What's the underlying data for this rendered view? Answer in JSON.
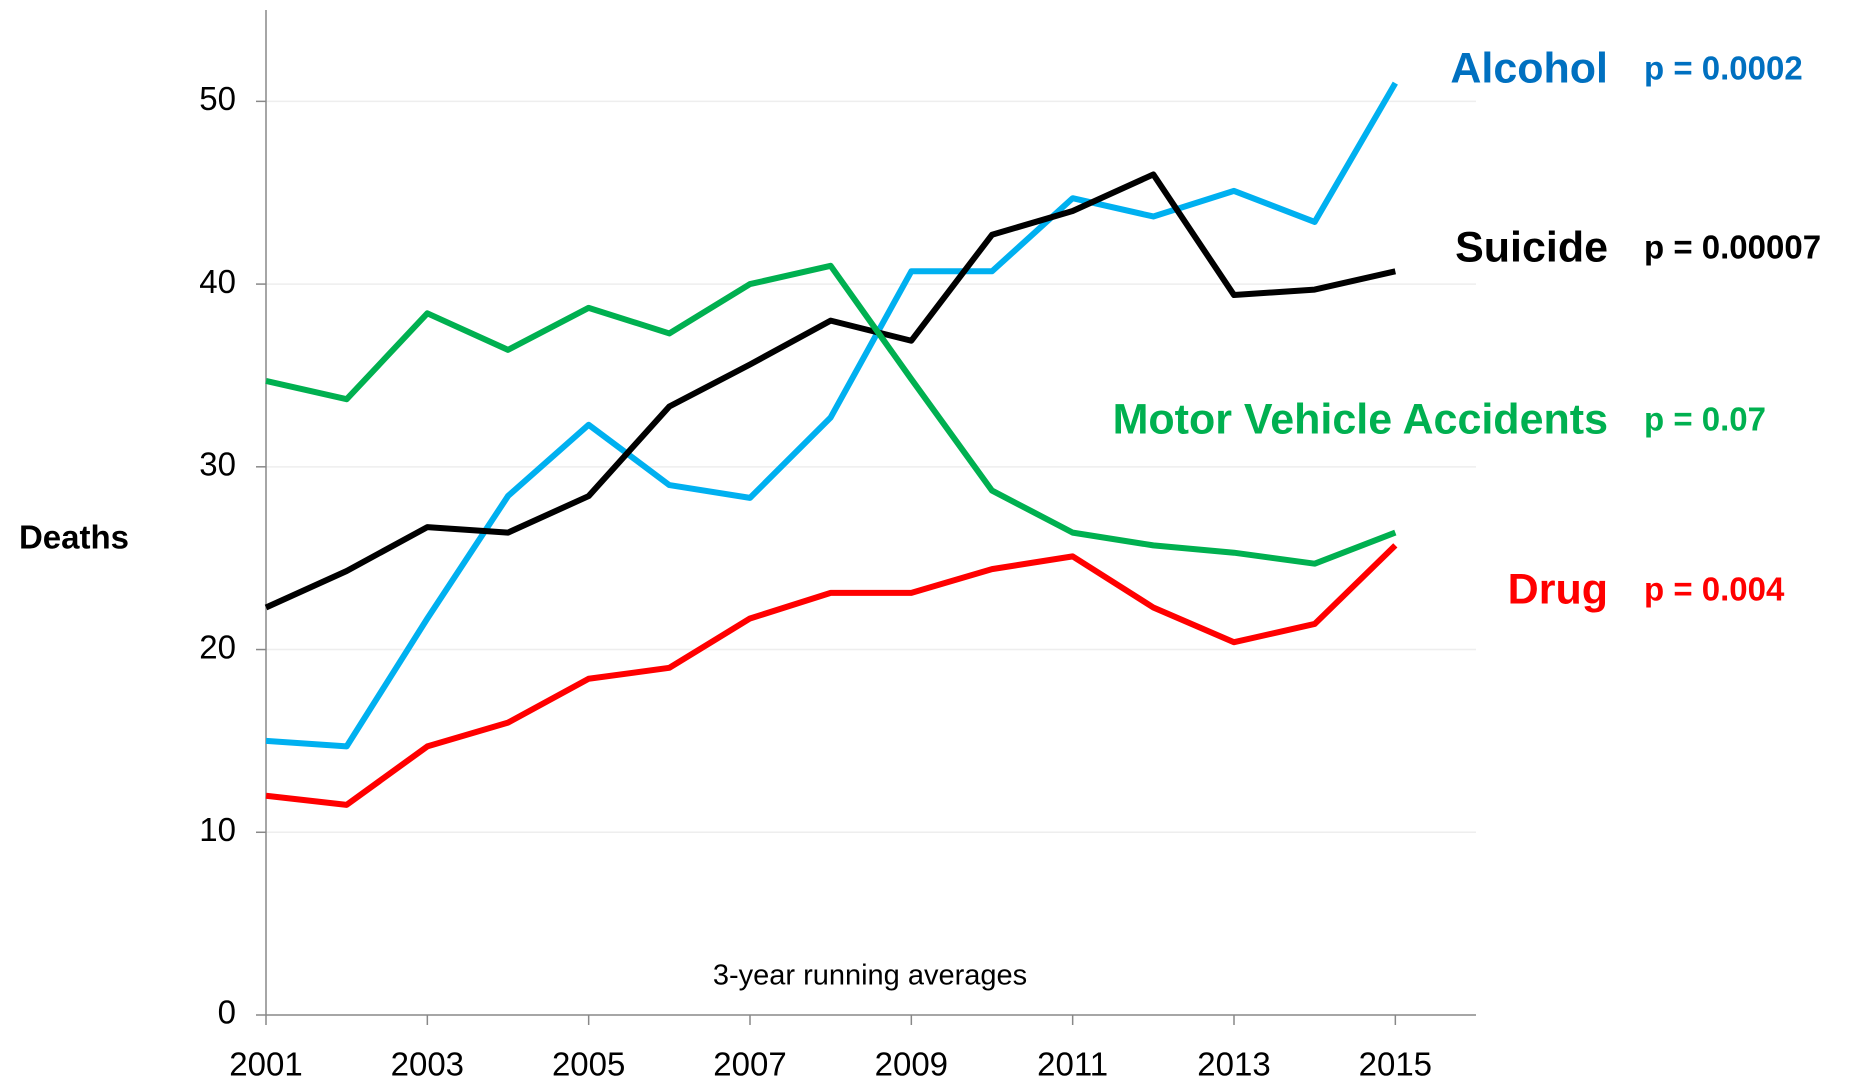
{
  "chart_data": {
    "type": "line",
    "y_label": "Deaths",
    "annotation": "3-year running averages",
    "x": [
      2001,
      2002,
      2003,
      2004,
      2005,
      2006,
      2007,
      2008,
      2009,
      2010,
      2011,
      2012,
      2013,
      2014,
      2015
    ],
    "xlim": [
      2001,
      2016
    ],
    "xticks": [
      2001,
      2003,
      2005,
      2007,
      2009,
      2011,
      2013,
      2015
    ],
    "ylim": [
      0,
      55
    ],
    "yticks": [
      0,
      10,
      20,
      30,
      40,
      50
    ],
    "grid": true,
    "series": [
      {
        "name": "Alcohol",
        "note": "p = 0.0002",
        "color": "#00b0f0",
        "label_color": "#0070c0",
        "values": [
          15.0,
          14.7,
          21.7,
          28.4,
          32.3,
          29.0,
          28.3,
          32.7,
          40.7,
          40.7,
          44.7,
          43.7,
          45.1,
          43.4,
          51.0
        ]
      },
      {
        "name": "Suicide",
        "note": "p = 0.00007",
        "color": "#000000",
        "label_color": "#000000",
        "values": [
          22.3,
          24.3,
          26.7,
          26.4,
          28.4,
          33.3,
          35.6,
          38.0,
          36.9,
          42.7,
          44.0,
          46.0,
          39.4,
          39.7,
          40.7
        ]
      },
      {
        "name": "Motor Vehicle Accidents",
        "note": "p = 0.07",
        "color": "#00b050",
        "label_color": "#00b050",
        "values": [
          34.7,
          33.7,
          38.4,
          36.4,
          38.7,
          37.3,
          40.0,
          41.0,
          34.8,
          28.7,
          26.4,
          25.7,
          25.3,
          24.7,
          26.4
        ]
      },
      {
        "name": "Drug",
        "note": "p = 0.004",
        "color": "#ff0000",
        "label_color": "#ff0000",
        "values": [
          12.0,
          11.5,
          14.7,
          16.0,
          18.4,
          19.0,
          21.7,
          23.1,
          23.1,
          24.4,
          25.1,
          22.3,
          20.4,
          21.4,
          25.7
        ]
      }
    ]
  }
}
